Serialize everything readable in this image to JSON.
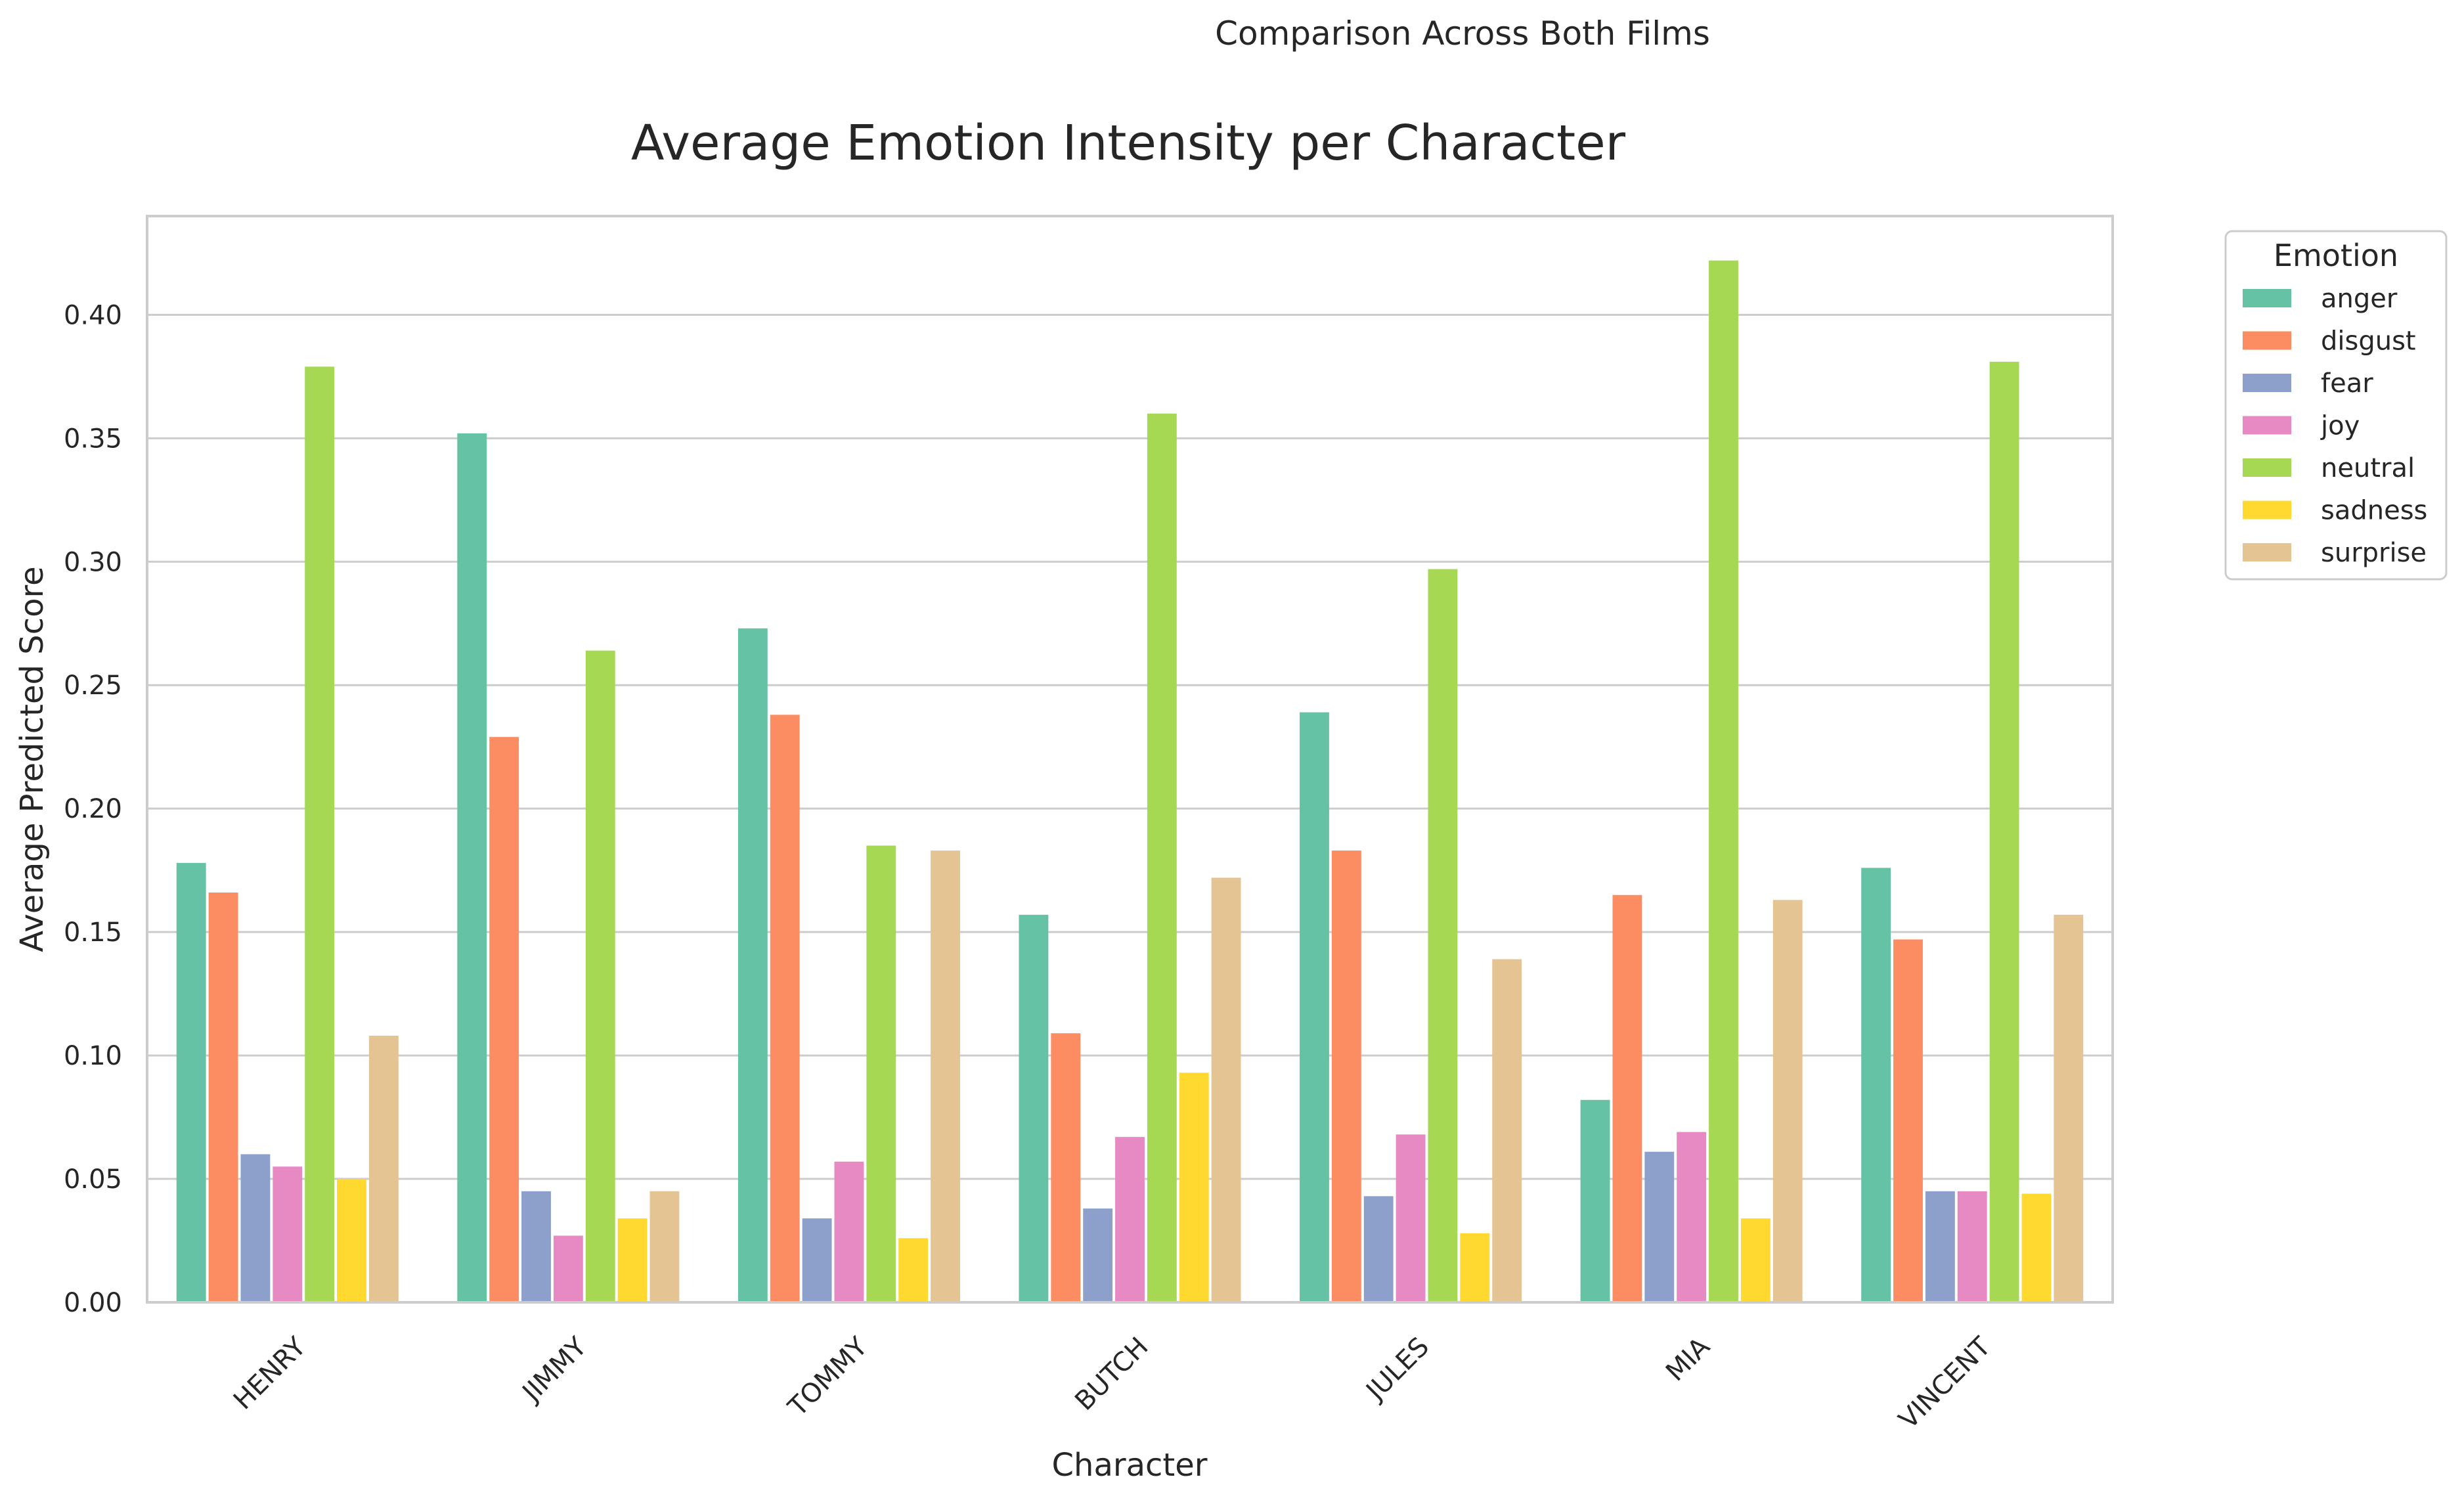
{
  "suptitle": "Comparison Across Both Films",
  "chart_data": {
    "type": "bar",
    "title": "Average Emotion Intensity per Character",
    "xlabel": "Character",
    "ylabel": "Average Predicted Score",
    "ylim": [
      0,
      0.44
    ],
    "yticks": [
      "0.00",
      "0.05",
      "0.10",
      "0.15",
      "0.20",
      "0.25",
      "0.30",
      "0.35",
      "0.40"
    ],
    "grid": "horizontal",
    "legend_position": "outside upper right",
    "legend_title": "Emotion",
    "categories": [
      "HENRY",
      "JIMMY",
      "TOMMY",
      "BUTCH",
      "JULES",
      "MIA",
      "VINCENT"
    ],
    "series": [
      {
        "name": "anger",
        "color": "#66c2a5",
        "values": [
          0.178,
          0.352,
          0.273,
          0.157,
          0.239,
          0.082,
          0.176
        ]
      },
      {
        "name": "disgust",
        "color": "#fc8d62",
        "values": [
          0.166,
          0.229,
          0.238,
          0.109,
          0.183,
          0.165,
          0.147
        ]
      },
      {
        "name": "fear",
        "color": "#8da0cb",
        "values": [
          0.06,
          0.045,
          0.034,
          0.038,
          0.043,
          0.061,
          0.045
        ]
      },
      {
        "name": "joy",
        "color": "#e78ac3",
        "values": [
          0.055,
          0.027,
          0.057,
          0.067,
          0.068,
          0.069,
          0.045
        ]
      },
      {
        "name": "neutral",
        "color": "#a6d854",
        "values": [
          0.379,
          0.264,
          0.185,
          0.36,
          0.297,
          0.422,
          0.381
        ]
      },
      {
        "name": "sadness",
        "color": "#ffd92f",
        "values": [
          0.05,
          0.034,
          0.026,
          0.093,
          0.028,
          0.034,
          0.044
        ]
      },
      {
        "name": "surprise",
        "color": "#e5c494",
        "values": [
          0.108,
          0.045,
          0.183,
          0.172,
          0.139,
          0.163,
          0.157
        ]
      }
    ]
  }
}
